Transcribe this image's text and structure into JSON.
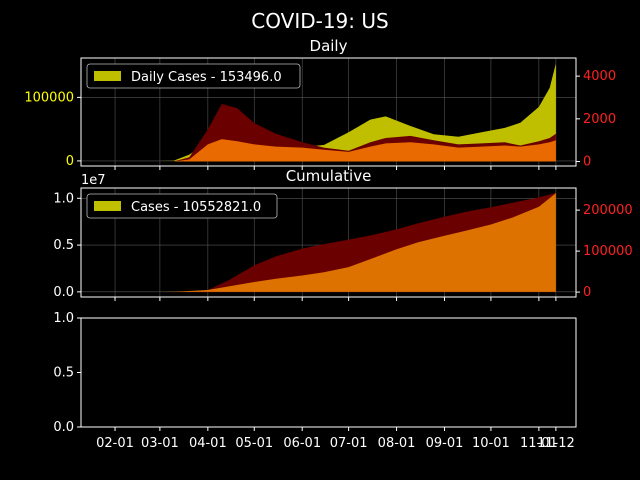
{
  "figure": {
    "suptitle": "COVID-19: US",
    "background": "#000000",
    "colors": {
      "daily_cases": "#bfbf00",
      "deaths_dark": "#6b0000",
      "deaths_light": "#e86a00",
      "cumulative_fill": "#de7200",
      "axis": "#ffffff",
      "left_ticks": "#ffff00",
      "right_ticks": "#ff2020",
      "grid": "#555555"
    }
  },
  "chart_data": [
    {
      "type": "area",
      "title": "Daily",
      "legend": {
        "label": "Daily Cases - 153496.0",
        "placement": "top-left"
      },
      "grid": true,
      "x_dates": [
        "2020-01-22",
        "2020-02-15",
        "2020-03-01",
        "2020-03-10",
        "2020-03-20",
        "2020-04-01",
        "2020-04-10",
        "2020-04-20",
        "2020-05-01",
        "2020-05-15",
        "2020-06-01",
        "2020-06-15",
        "2020-07-01",
        "2020-07-15",
        "2020-07-25",
        "2020-08-10",
        "2020-08-25",
        "2020-09-10",
        "2020-09-25",
        "2020-10-10",
        "2020-10-20",
        "2020-11-01",
        "2020-11-08",
        "2020-11-12"
      ],
      "series": [
        {
          "role": "cases",
          "axis": "left",
          "values": [
            0,
            0,
            0,
            500,
            10000,
            30000,
            32000,
            30000,
            28000,
            24000,
            22000,
            25000,
            45000,
            65000,
            70000,
            55000,
            42000,
            38000,
            45000,
            52000,
            60000,
            85000,
            115000,
            153496
          ]
        },
        {
          "role": "deaths_peak",
          "axis": "right",
          "values": [
            0,
            0,
            0,
            0,
            200,
            1500,
            2700,
            2500,
            1800,
            1300,
            900,
            650,
            500,
            900,
            1100,
            1200,
            1000,
            800,
            850,
            900,
            750,
            950,
            1100,
            1300
          ]
        },
        {
          "role": "deaths_floor",
          "axis": "right",
          "values": [
            0,
            0,
            0,
            0,
            100,
            800,
            1050,
            950,
            800,
            700,
            650,
            550,
            450,
            700,
            850,
            900,
            800,
            650,
            700,
            750,
            700,
            800,
            900,
            1000
          ]
        }
      ],
      "left_axis": {
        "ticks": [
          0,
          100000
        ],
        "tick_labels": [
          "0",
          "100000"
        ],
        "ylim": [
          -8000,
          162000
        ]
      },
      "right_axis": {
        "ticks": [
          0,
          2000,
          4000
        ],
        "tick_labels": [
          "0",
          "2000",
          "4000"
        ],
        "ylim": [
          -210,
          4850
        ]
      }
    },
    {
      "type": "area",
      "title": "Cumulative",
      "offset_label": "1e7",
      "legend": {
        "label": "Cases - 10552821.0",
        "placement": "top-left"
      },
      "grid": true,
      "x_dates": [
        "2020-01-22",
        "2020-03-01",
        "2020-03-15",
        "2020-04-01",
        "2020-04-15",
        "2020-05-01",
        "2020-05-15",
        "2020-06-01",
        "2020-06-15",
        "2020-07-01",
        "2020-07-15",
        "2020-08-01",
        "2020-08-15",
        "2020-09-01",
        "2020-09-15",
        "2020-10-01",
        "2020-10-15",
        "2020-11-01",
        "2020-11-12"
      ],
      "series": [
        {
          "role": "cases",
          "axis": "left",
          "values": [
            0,
            0,
            50000,
            200000,
            600000,
            1050000,
            1400000,
            1750000,
            2100000,
            2650000,
            3500000,
            4550000,
            5300000,
            6000000,
            6550000,
            7200000,
            7950000,
            9100000,
            10552821
          ]
        },
        {
          "role": "deaths",
          "axis": "right",
          "values": [
            0,
            0,
            100,
            5000,
            30000,
            65000,
            87000,
            106000,
            117000,
            128000,
            138000,
            153000,
            168000,
            184000,
            196000,
            207000,
            218000,
            231000,
            242000
          ]
        }
      ],
      "left_axis": {
        "ticks": [
          0,
          5000000,
          10000000
        ],
        "tick_labels": [
          "0.0",
          "0.5",
          "1.0"
        ],
        "ylim": [
          -550000,
          11100000
        ]
      },
      "right_axis": {
        "ticks": [
          0,
          100000,
          200000
        ],
        "tick_labels": [
          "0",
          "100000",
          "200000"
        ],
        "ylim": [
          -12000,
          254000
        ]
      }
    },
    {
      "type": "line",
      "title": "",
      "y_ticks": [
        0,
        0.5,
        1.0
      ],
      "y_tick_labels": [
        "0.0",
        "0.5",
        "1.0"
      ],
      "ylim": [
        0,
        1
      ],
      "x_ticks": [
        "2020-02-01",
        "2020-03-01",
        "2020-04-01",
        "2020-05-01",
        "2020-06-01",
        "2020-07-01",
        "2020-08-01",
        "2020-09-01",
        "2020-10-01",
        "2020-11-01",
        "2020-11-12"
      ],
      "x_tick_labels": [
        "02-01",
        "03-01",
        "04-01",
        "05-01",
        "06-01",
        "07-01",
        "08-01",
        "09-01",
        "10-01",
        "11-01",
        "11-12"
      ],
      "xlim": [
        "2020-01-10",
        "2020-11-25"
      ]
    }
  ]
}
